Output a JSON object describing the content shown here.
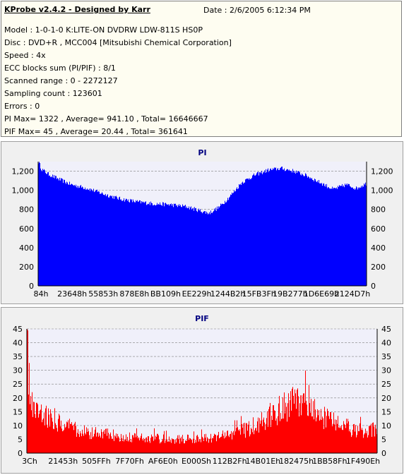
{
  "header": {
    "title": "KProbe v2.4.2 - Designed by Karr",
    "date": "Date : 2/6/2005 6:12:34 PM"
  },
  "info_lines": [
    "Model : 1-0-1-0 K:LITE-ON DVDRW LDW-811S   HS0P",
    "Disc : DVD+R , MCC004 [Mitsubishi Chemical Corporation]",
    "Speed : 4x",
    "ECC blocks sum (PI/PIF) : 8/1",
    "Scanned range : 0 - 2272127",
    "Sampling count : 123601",
    "Errors : 0",
    "PI Max= 1322 , Average= 941.10 , Total= 16646667",
    "PIF Max= 45 , Average= 20.44 , Total= 361641"
  ],
  "colors": {
    "pi_fill": "#0000ff",
    "pif_fill": "#ff0000",
    "plot_bg": "#f0f0fa",
    "title_color": "#000080",
    "grid": "#808080"
  },
  "chart_data": [
    {
      "type": "area",
      "title": "PI",
      "ylim": [
        0,
        1300
      ],
      "yticks": [
        0,
        200,
        400,
        600,
        800,
        1000,
        1200
      ],
      "ytick_labels": [
        "0",
        "200",
        "400",
        "600",
        "800",
        "1,000",
        "1,200"
      ],
      "xtick_labels": [
        "84h",
        "23648h",
        "55853h",
        "878E8h",
        "BB109h",
        "EE229h",
        "1244B2h",
        "15FB3Fh",
        "19B277h",
        "1D6E69h",
        "2124D7h"
      ],
      "grid": "dashed",
      "series": [
        {
          "x": [
            0,
            0.01,
            0.03,
            0.06,
            0.1,
            0.15,
            0.2,
            0.25,
            0.3,
            0.35,
            0.4,
            0.45,
            0.5,
            0.52,
            0.55,
            0.58,
            0.62,
            0.66,
            0.7,
            0.74,
            0.78,
            0.82,
            0.86,
            0.9,
            0.94,
            0.97,
            1.0
          ],
          "y": [
            1300,
            1220,
            1170,
            1120,
            1060,
            1020,
            960,
            910,
            880,
            860,
            850,
            830,
            780,
            760,
            820,
            920,
            1080,
            1160,
            1210,
            1230,
            1200,
            1150,
            1080,
            1010,
            1060,
            1020,
            1070
          ]
        }
      ]
    },
    {
      "type": "bar",
      "title": "PIF",
      "ylim": [
        0,
        45
      ],
      "yticks": [
        0,
        5,
        10,
        15,
        20,
        25,
        30,
        35,
        40,
        45
      ],
      "ytick_labels": [
        "0",
        "5",
        "10",
        "15",
        "20",
        "25",
        "30",
        "35",
        "40",
        "45"
      ],
      "xtick_labels": [
        "3Ch",
        "21453h",
        "505FFh",
        "7F70Fh",
        "AF6E0h",
        "E000Sh",
        "112B2Fh",
        "14B01Eh",
        "182475h",
        "1BB58Fh",
        "1F490Eh"
      ],
      "grid": "dashed",
      "series": [
        {
          "x": [
            0,
            0.005,
            0.02,
            0.05,
            0.1,
            0.15,
            0.2,
            0.3,
            0.4,
            0.5,
            0.6,
            0.65,
            0.7,
            0.75,
            0.8,
            0.85,
            0.9,
            0.95,
            1.0
          ],
          "y": [
            44,
            26,
            18,
            14,
            11,
            8,
            7,
            6,
            5,
            5,
            7,
            10,
            14,
            18,
            17,
            13,
            10,
            8,
            9
          ]
        }
      ]
    }
  ]
}
